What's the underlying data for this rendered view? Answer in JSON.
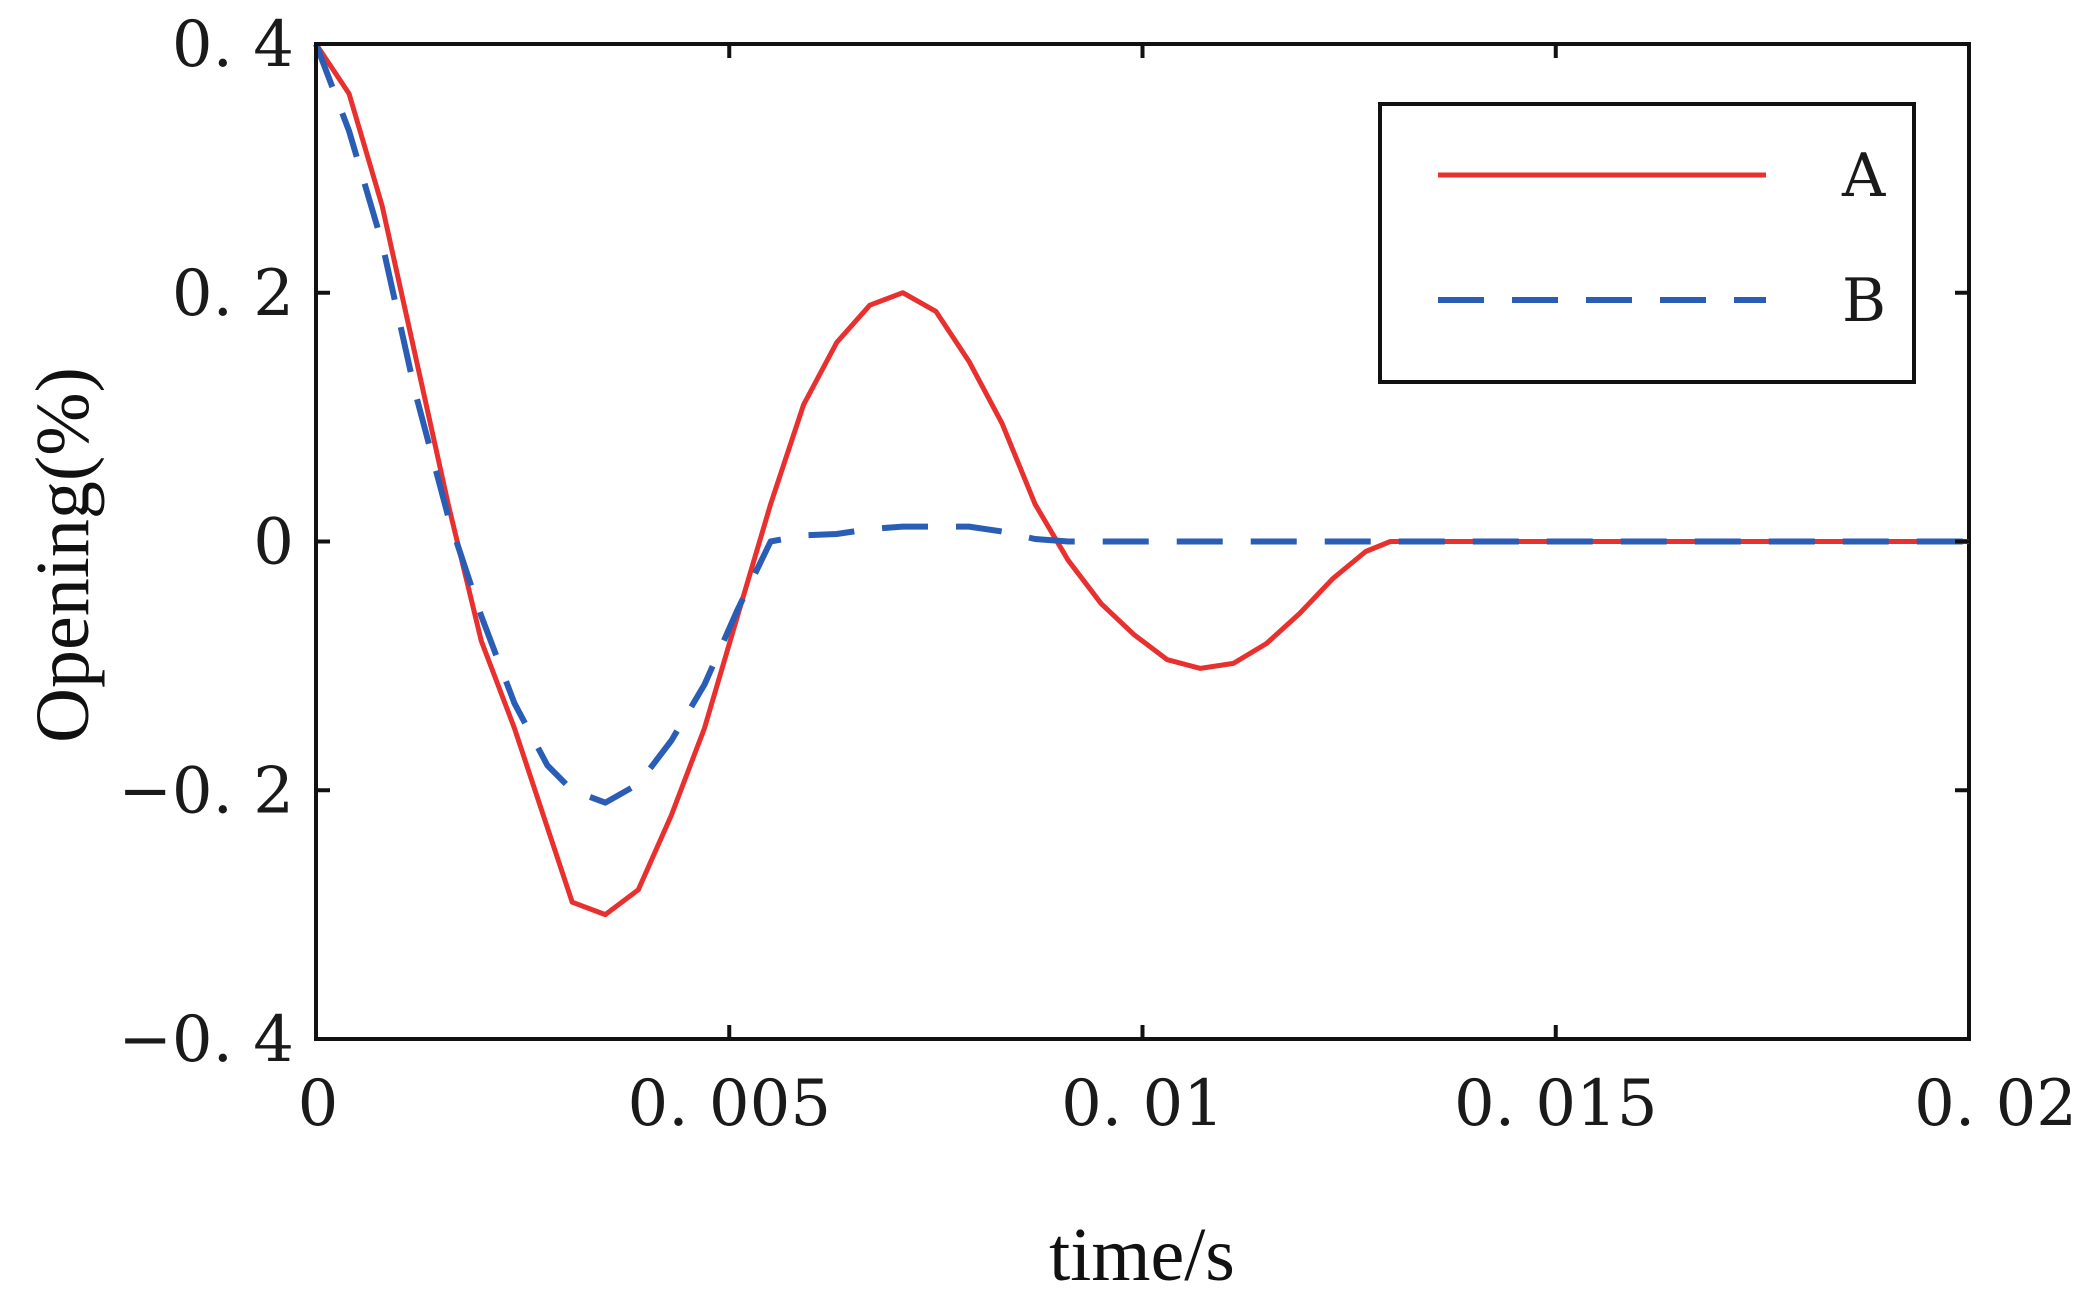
{
  "chart_data": {
    "type": "line",
    "title": "",
    "xlabel": "time/s",
    "ylabel": "Opening(%)",
    "xlim": [
      0,
      0.02
    ],
    "ylim": [
      -0.4,
      0.4
    ],
    "xticks": [
      0,
      0.005,
      0.01,
      0.015,
      0.02
    ],
    "xtick_labels": [
      "0",
      "0. 005",
      "0. 01",
      "0. 015",
      "0. 02"
    ],
    "yticks": [
      0.4,
      0.2,
      0,
      -0.2,
      -0.4
    ],
    "ytick_labels": [
      "0. 4",
      "0. 2",
      "0",
      "−0. 2",
      "−0. 4"
    ],
    "grid": false,
    "legend_position": "top-right",
    "series": [
      {
        "name": "A",
        "color": "#e8312f",
        "style": "solid",
        "x": [
          0,
          0.0004,
          0.0008,
          0.0012,
          0.0016,
          0.002,
          0.0024,
          0.0028,
          0.0031,
          0.0035,
          0.0039,
          0.0043,
          0.0047,
          0.0051,
          0.0055,
          0.0059,
          0.0063,
          0.0067,
          0.0071,
          0.0075,
          0.0079,
          0.0083,
          0.0087,
          0.0091,
          0.0095,
          0.0099,
          0.0103,
          0.0107,
          0.0111,
          0.0115,
          0.0119,
          0.0123,
          0.0127,
          0.013,
          0.0135,
          0.014,
          0.015,
          0.016,
          0.017,
          0.018,
          0.019,
          0.02
        ],
        "y": [
          0.4,
          0.36,
          0.27,
          0.15,
          0.03,
          -0.08,
          -0.15,
          -0.23,
          -0.29,
          -0.3,
          -0.28,
          -0.22,
          -0.15,
          -0.06,
          0.03,
          0.11,
          0.16,
          0.19,
          0.2,
          0.185,
          0.145,
          0.095,
          0.03,
          -0.015,
          -0.05,
          -0.075,
          -0.095,
          -0.102,
          -0.098,
          -0.082,
          -0.058,
          -0.03,
          -0.008,
          0.0,
          0.0,
          0.0,
          0.0,
          0.0,
          0.0,
          0.0,
          0.0,
          0.0
        ]
      },
      {
        "name": "B",
        "color": "#2a5db5",
        "style": "dashed",
        "x": [
          0,
          0.0004,
          0.0008,
          0.0012,
          0.0016,
          0.002,
          0.0024,
          0.0028,
          0.0031,
          0.0035,
          0.0039,
          0.0043,
          0.0047,
          0.0051,
          0.0055,
          0.0059,
          0.0063,
          0.0067,
          0.0071,
          0.0075,
          0.0079,
          0.0083,
          0.0087,
          0.0091,
          0.0095,
          0.01,
          0.012,
          0.014,
          0.016,
          0.018,
          0.02
        ],
        "y": [
          0.4,
          0.33,
          0.24,
          0.12,
          0.02,
          -0.06,
          -0.13,
          -0.18,
          -0.2,
          -0.21,
          -0.195,
          -0.16,
          -0.115,
          -0.055,
          0.0,
          0.005,
          0.006,
          0.01,
          0.012,
          0.012,
          0.012,
          0.008,
          0.002,
          0.0,
          0.0,
          0.0,
          0.0,
          0.0,
          0.0,
          0.0,
          0.0
        ]
      }
    ]
  }
}
